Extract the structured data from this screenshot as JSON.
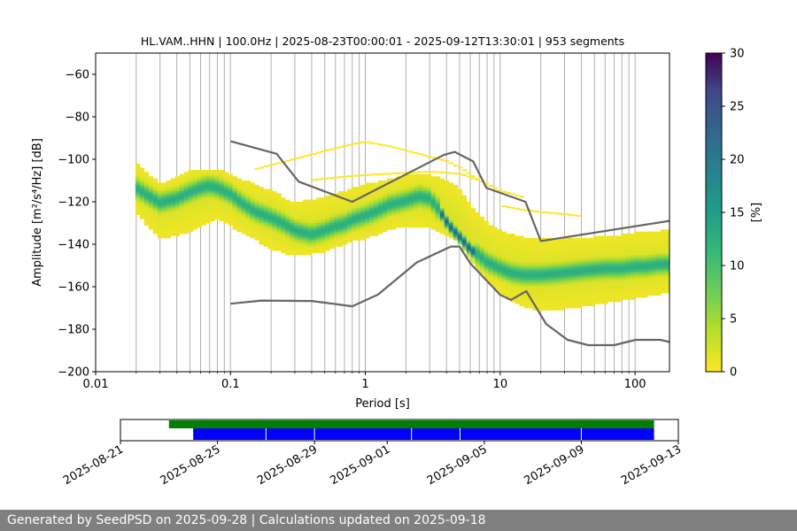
{
  "chart_data": [
    {
      "type": "heatmap",
      "title": "HL.VAM..HHN | 100.0Hz | 2025-08-23T00:00:01 - 2025-09-12T13:30:01 | 953 segments",
      "xlabel": "Period [s]",
      "ylabel": "Amplitude [m²/s⁴/Hz] [dB]",
      "xscale": "log",
      "xlim": [
        0.01,
        180
      ],
      "ylim": [
        -200,
        -50
      ],
      "xtick_labels": [
        "0.01",
        "0.1",
        "1",
        "10",
        "100"
      ],
      "ytick_labels": [
        "−60",
        "−80",
        "−100",
        "−120",
        "−140",
        "−160",
        "−180",
        "−200"
      ],
      "yticks": [
        -60,
        -80,
        -100,
        -120,
        -140,
        -160,
        -180,
        -200
      ],
      "grid": "vertical",
      "colorbar": {
        "label": "[%]",
        "range": [
          0,
          30
        ],
        "tick_labels": [
          "0",
          "5",
          "10",
          "15",
          "20",
          "25",
          "30"
        ],
        "ticks": [
          0,
          5,
          10,
          15,
          20,
          25,
          30
        ],
        "colormap": "viridis_r"
      },
      "mode_curve": {
        "period": [
          0.02,
          0.025,
          0.03,
          0.04,
          0.05,
          0.06,
          0.07,
          0.08,
          0.1,
          0.12,
          0.15,
          0.2,
          0.25,
          0.3,
          0.4,
          0.5,
          0.6,
          0.7,
          0.8,
          1.0,
          1.2,
          1.5,
          2.0,
          2.5,
          3.0,
          3.5,
          4.0,
          4.5,
          5.0,
          5.5,
          6.0,
          7.0,
          8.0,
          10,
          12,
          15,
          20,
          30,
          40,
          60,
          80,
          100,
          120,
          150,
          180
        ],
        "db": [
          -114,
          -118,
          -121,
          -119,
          -116,
          -114,
          -113,
          -114,
          -117,
          -121,
          -125,
          -128,
          -131,
          -134,
          -136,
          -134,
          -132,
          -131,
          -129,
          -127,
          -125,
          -122,
          -120,
          -118,
          -119,
          -124,
          -130,
          -134,
          -137,
          -140,
          -143,
          -146,
          -149,
          -152,
          -154,
          -155,
          -155,
          -154,
          -153,
          -152,
          -152,
          -151,
          -151,
          -150,
          -150
        ]
      },
      "spread_lower": {
        "period": [
          0.02,
          0.03,
          0.05,
          0.08,
          0.1,
          0.15,
          0.2,
          0.3,
          0.5,
          0.8,
          1.0,
          1.5,
          2.0,
          3.0,
          4.0,
          5.0,
          6.0,
          8.0,
          10,
          15,
          20,
          30,
          50,
          80,
          100,
          150,
          180
        ],
        "db": [
          -126,
          -138,
          -135,
          -128,
          -132,
          -138,
          -143,
          -146,
          -144,
          -139,
          -138,
          -134,
          -132,
          -133,
          -136,
          -140,
          -148,
          -158,
          -164,
          -170,
          -172,
          -171,
          -169,
          -167,
          -166,
          -164,
          -163
        ]
      },
      "spread_upper": {
        "period": [
          0.02,
          0.03,
          0.05,
          0.08,
          0.1,
          0.15,
          0.2,
          0.3,
          0.5,
          0.8,
          1.0,
          1.5,
          2.0,
          3.0,
          4.0,
          5.0,
          6.0,
          8.0,
          10,
          15,
          20,
          30,
          50,
          80,
          100,
          150,
          180
        ],
        "db": [
          -102,
          -112,
          -106,
          -105,
          -108,
          -112,
          -115,
          -121,
          -118,
          -114,
          -112,
          -110,
          -108,
          -108,
          -110,
          -114,
          -122,
          -130,
          -134,
          -137,
          -138,
          -138,
          -137,
          -136,
          -135,
          -134,
          -134
        ]
      },
      "scatter_bands": [
        {
          "period": [
            0.15,
            0.3,
            0.6,
            0.8,
            1.0,
            1.5,
            2.0,
            3.0,
            4.0,
            5.0,
            7.0
          ],
          "db": [
            -105,
            -100,
            -95,
            -93,
            -92,
            -94,
            -96,
            -99,
            -101,
            -104,
            -110
          ]
        },
        {
          "period": [
            0.4,
            0.8,
            1.5,
            3.0,
            5.0,
            7.0,
            10,
            15
          ],
          "db": [
            -110,
            -108,
            -107,
            -106,
            -107,
            -110,
            -115,
            -118
          ]
        },
        {
          "period": [
            10,
            15,
            20,
            30,
            40
          ],
          "db": [
            -122,
            -124,
            -125,
            -126,
            -127
          ]
        }
      ],
      "nlnm": {
        "period": [
          0.1,
          0.17,
          0.4,
          0.8,
          1.24,
          2.4,
          4.3,
          5.0,
          6.0,
          10,
          12,
          15.6,
          21.9,
          31.6,
          45,
          70,
          101,
          154,
          180
        ],
        "db": [
          -168,
          -166.5,
          -166.7,
          -169.2,
          -163.7,
          -148.6,
          -141.1,
          -141.1,
          -149,
          -163.8,
          -166.2,
          -162.1,
          -177.5,
          -185,
          -187.5,
          -187.5,
          -185,
          -185,
          -186
        ]
      },
      "nhnm": {
        "period": [
          0.1,
          0.22,
          0.32,
          0.8,
          3.8,
          4.6,
          6.3,
          7.9,
          15.4,
          20,
          180
        ],
        "db": [
          -91.5,
          -97.4,
          -110.5,
          -120,
          -98,
          -96.5,
          -101,
          -113.5,
          -120,
          -138.5,
          -129
        ]
      }
    },
    {
      "type": "timeline",
      "xtick_labels": [
        "2025-08-21",
        "2025-08-25",
        "2025-08-29",
        "2025-09-01",
        "2025-09-05",
        "2025-09-09",
        "2025-09-13"
      ],
      "xlim": [
        "2025-08-21",
        "2025-09-13"
      ],
      "bars": [
        {
          "color": "#008000",
          "start": "2025-08-23",
          "end": "2025-09-12"
        },
        {
          "color": "#0000ff",
          "start": "2025-08-24",
          "end": "2025-09-12",
          "gaps": [
            "2025-08-27",
            "2025-08-29",
            "2025-09-02",
            "2025-09-04",
            "2025-09-09"
          ]
        }
      ]
    }
  ],
  "footer": {
    "text": "Generated by SeedPSD on 2025-09-28 | Calculations updated on 2025-09-18"
  },
  "colors": {
    "noise_model": "#666666",
    "grid": "#b0b0b0",
    "timeline_green": "#008000",
    "timeline_blue": "#0000ff",
    "footer_bg": "#808080"
  }
}
